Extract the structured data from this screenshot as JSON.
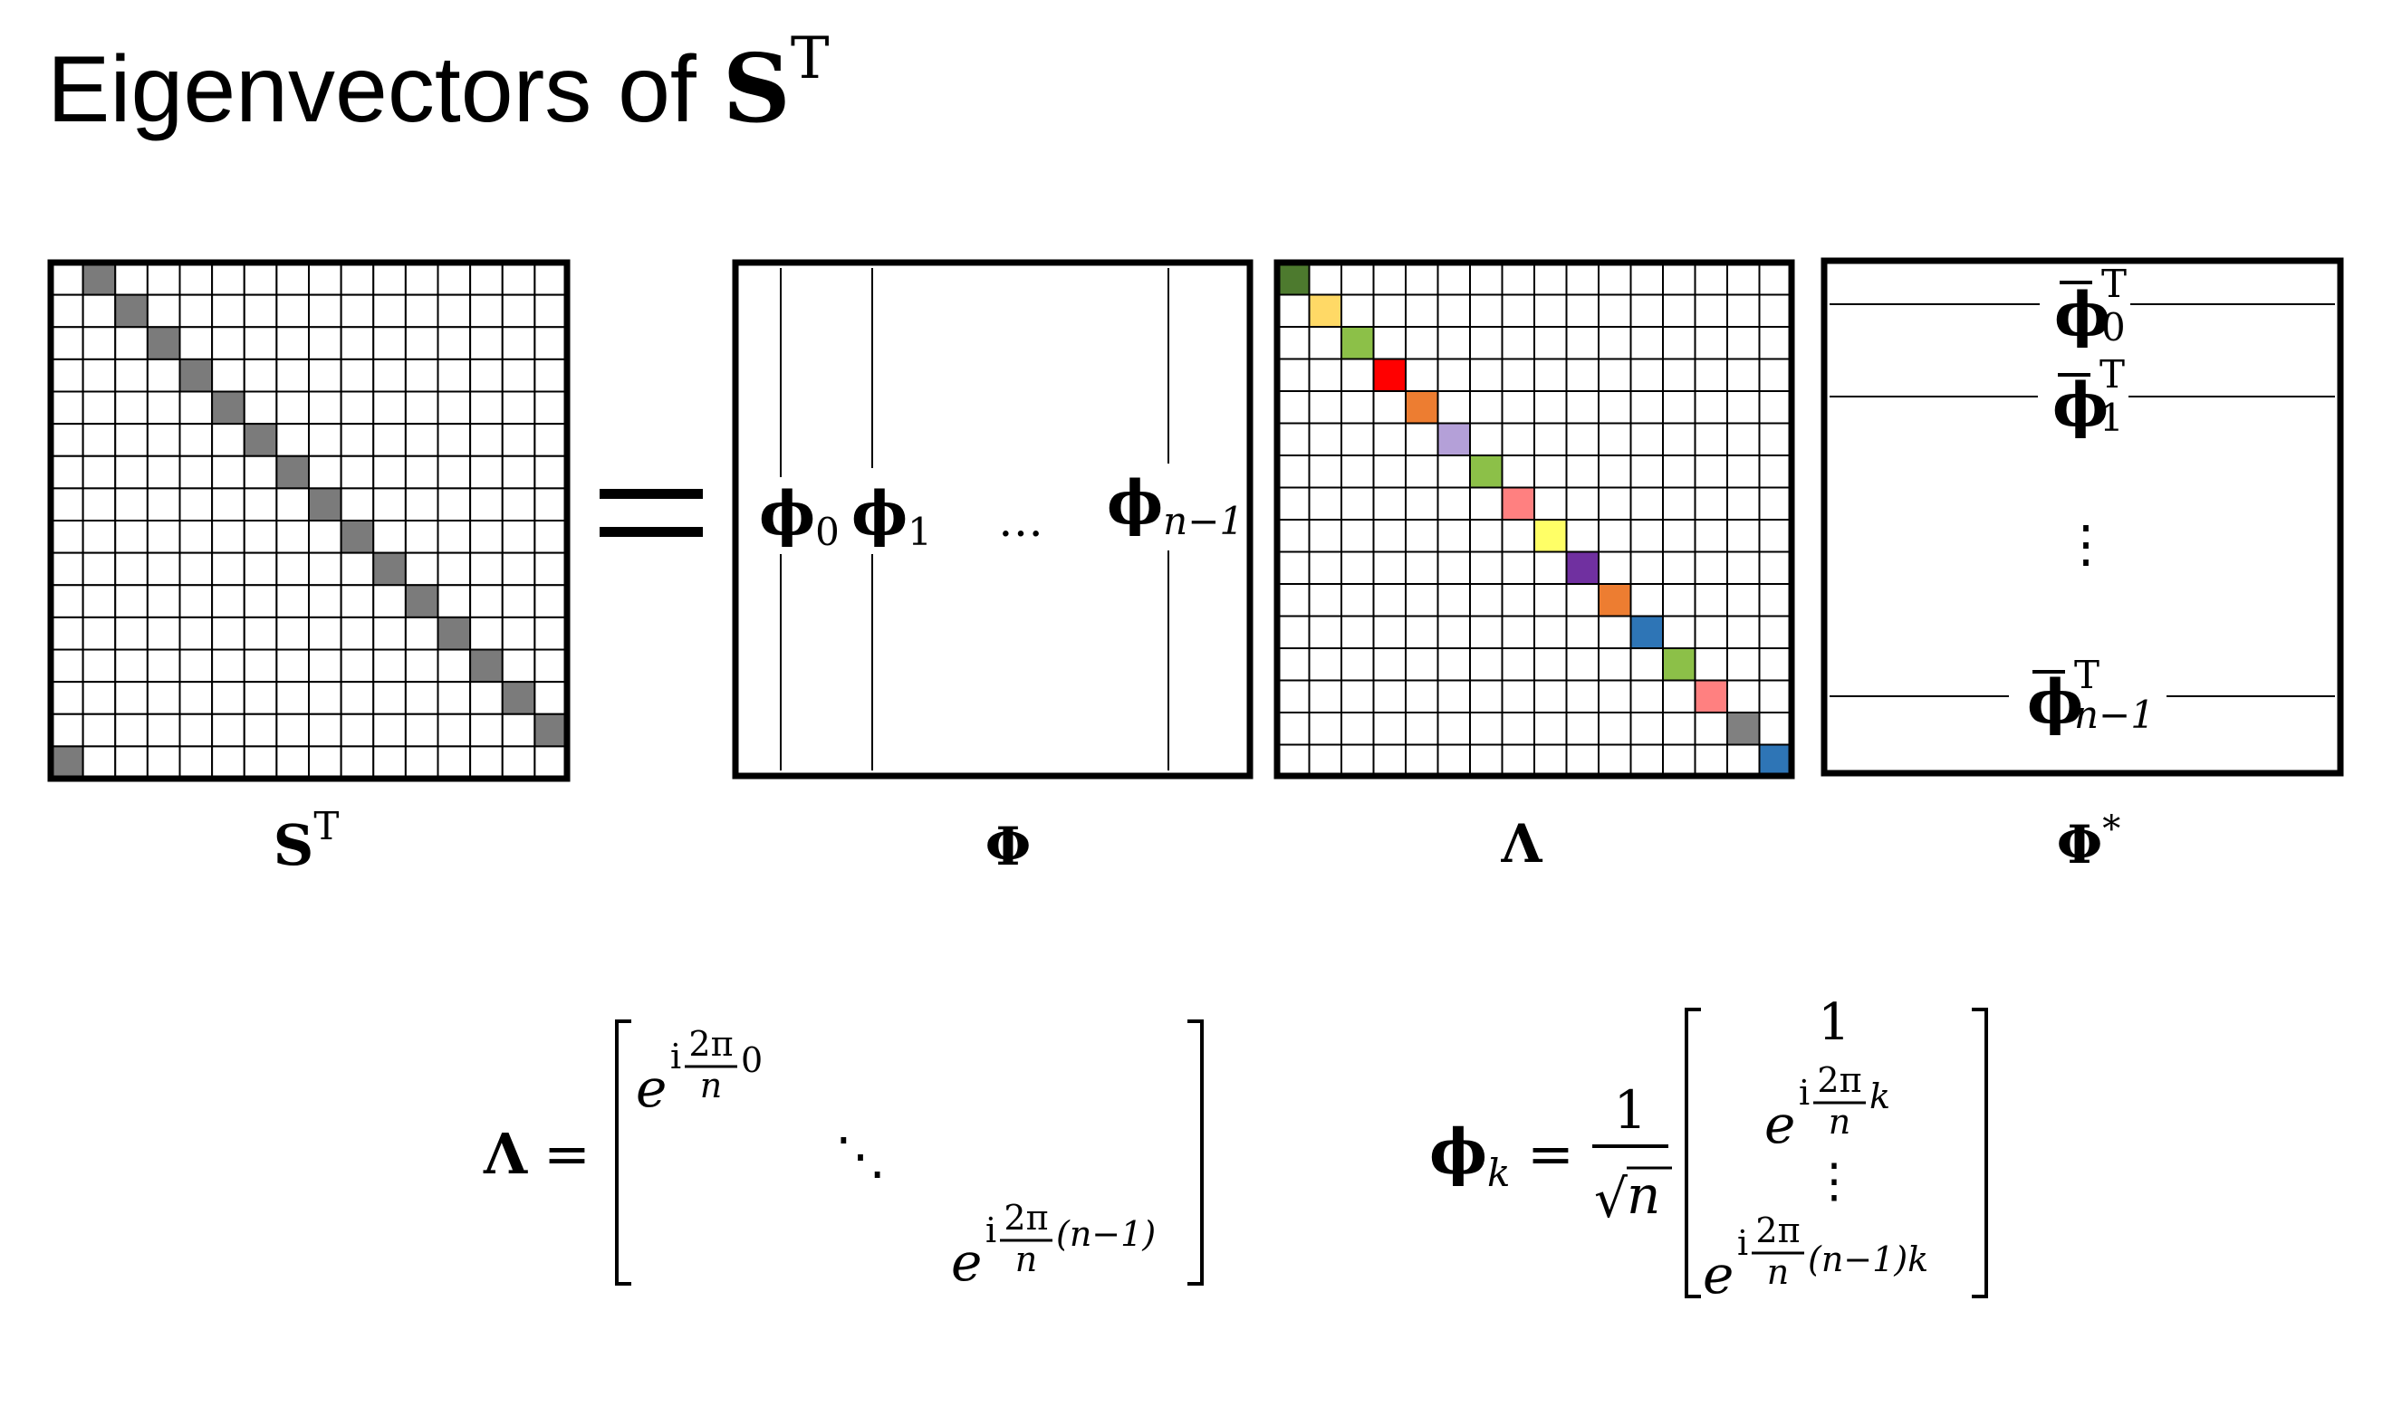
{
  "title": {
    "text": "Eigenvectors of ",
    "symbol": "S",
    "sup": "T"
  },
  "equals_sign": "=",
  "matrix_labels": {
    "shift_t": {
      "base": "S",
      "sup": "T"
    },
    "phi": "Φ",
    "lambda": "Λ",
    "phi_star": {
      "base": "Φ",
      "sup": "*"
    }
  },
  "shift_matrix": {
    "grid_size": 16,
    "fill_color": "#7b7b7b"
  },
  "phi_columns": [
    {
      "base": "ϕ",
      "sub": "0"
    },
    {
      "base": "ϕ",
      "sub": "1"
    },
    {
      "ellipsis": "…"
    },
    {
      "base": "ϕ",
      "sub": "n−1"
    }
  ],
  "lambda_matrix": {
    "grid_size": 16,
    "diagonal_colors": [
      "#4d7a2e",
      "#ffd966",
      "#8cc048",
      "#ff0000",
      "#ed7d31",
      "#b4a0d8",
      "#8cc048",
      "#ff8080",
      "#ffff66",
      "#7030a0",
      "#ed7d31",
      "#2e75b6",
      "#8cc048",
      "#ff8080",
      "#808080",
      "#2e75b6"
    ]
  },
  "phi_star_rows": [
    {
      "base": "ϕ",
      "bar": true,
      "sub": "0",
      "sup": "T"
    },
    {
      "base": "ϕ",
      "bar": true,
      "sub": "1",
      "sup": "T"
    },
    {
      "ellipsis": "⋮"
    },
    {
      "base": "ϕ",
      "bar": true,
      "sub": "n−1",
      "sup": "T"
    }
  ],
  "lambda_eq": {
    "lhs": "Λ",
    "eq": "=",
    "e": "e",
    "i": "i",
    "frac_num": "2π",
    "frac_den": "n",
    "first_exp_tail": "0",
    "dots": "⋱",
    "last_exp_tail": "(n−1)"
  },
  "phi_k_eq": {
    "lhs_base": "ϕ",
    "lhs_sub": "k",
    "eq": "=",
    "coef_num": "1",
    "sqrt": "√",
    "coef_den": "n",
    "entries": {
      "first": "1",
      "e": "e",
      "i": "i",
      "frac_num": "2π",
      "frac_den": "n",
      "second_tail": "k",
      "vdots": "⋮",
      "last_tail": "(n−1)k"
    }
  }
}
